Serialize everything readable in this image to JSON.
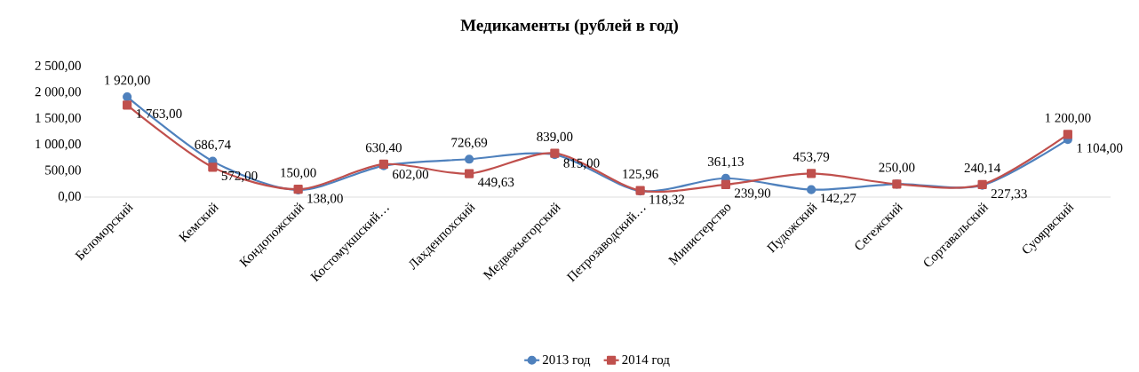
{
  "chart_data": {
    "type": "line",
    "title": "Медикаменты (рублей в год)",
    "categories": [
      "Беломорский",
      "Кемский",
      "Кондопожский",
      "Костомукшский…",
      "Лахденпохский",
      "Медвежьегорский",
      "Петрозаводский…",
      "Министерство",
      "Пудожский",
      "Сегежский",
      "Сортавальский",
      "Суоярвский"
    ],
    "series": [
      {
        "name": "2013 год",
        "color": "#4f81bd",
        "marker": "circle",
        "values": [
          1920,
          686.74,
          138,
          602,
          726.69,
          815,
          118.32,
          361.13,
          142.27,
          250,
          227.33,
          1104
        ],
        "value_labels": [
          "1 920,00",
          "686,74",
          "138,00",
          "602,00",
          "726,69",
          "815,00",
          "118,32",
          "361,13",
          "142,27",
          null,
          "227,33",
          "1 104,00"
        ]
      },
      {
        "name": "2014 год",
        "color": "#c0504d",
        "marker": "square",
        "values": [
          1763,
          572,
          150,
          630.4,
          449.63,
          839,
          125.96,
          239.9,
          453.79,
          250,
          240.14,
          1200
        ],
        "value_labels": [
          "1 763,00",
          "572,00",
          "150,00",
          "630,40",
          "449,63",
          "839,00",
          "125,96",
          "239,90",
          "453,79",
          "250,00",
          "240,14",
          "1 200,00"
        ]
      }
    ],
    "ylim": [
      0,
      2500
    ],
    "yticks": [
      {
        "value": 0,
        "label": "0,00"
      },
      {
        "value": 500,
        "label": "500,00"
      },
      {
        "value": 1000,
        "label": "1 000,00"
      },
      {
        "value": 1500,
        "label": "1 500,00"
      },
      {
        "value": 2000,
        "label": "2 000,00"
      },
      {
        "value": 2500,
        "label": "2 500,00"
      }
    ],
    "grid": false,
    "legend": "bottom"
  }
}
